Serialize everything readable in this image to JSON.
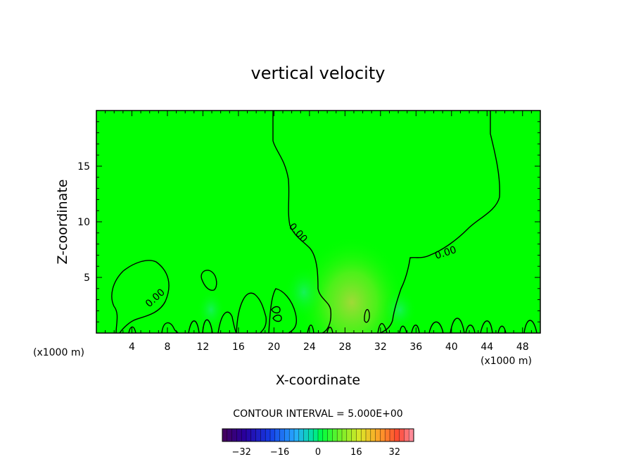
{
  "chart_data": {
    "type": "heatmap",
    "title": "vertical velocity",
    "xlabel": "X-coordinate",
    "ylabel": "Z-coordinate",
    "x_unit_left": "(x1000 m)",
    "x_unit_right": "(x1000 m)",
    "xlim": [
      0,
      50
    ],
    "ylim": [
      0,
      20
    ],
    "x_ticks": [
      4,
      8,
      12,
      16,
      20,
      24,
      28,
      32,
      36,
      40,
      44,
      48
    ],
    "y_ticks": [
      5,
      10,
      15
    ],
    "contour_label": "0.00",
    "contour_interval_text": "CONTOUR INTERVAL = 5.000E+00",
    "colorbar": {
      "min": -40,
      "max": 40,
      "ticks": [
        -32,
        -16,
        0,
        16,
        32
      ]
    },
    "colors": {
      "background_field": "#00ff00",
      "updraft_core": "#7fd83a",
      "weak_downdraft": "#26e87a"
    }
  }
}
